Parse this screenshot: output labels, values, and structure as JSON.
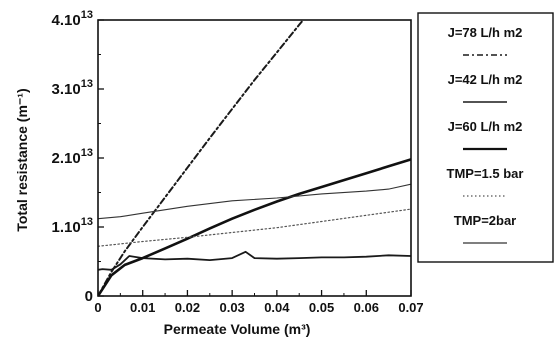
{
  "chart_data": {
    "type": "line",
    "title": "",
    "xlabel": "Permeate Volume (m³)",
    "ylabel": "Total resistance (m⁻¹)",
    "xlim": [
      0,
      0.07
    ],
    "ylim": [
      0,
      40000000000000.0
    ],
    "grid": false,
    "legend_position": "right-outside",
    "x_ticks": [
      {
        "value": 0,
        "label": "0"
      },
      {
        "value": 0.01,
        "label": "0.01"
      },
      {
        "value": 0.02,
        "label": "0.02"
      },
      {
        "value": 0.03,
        "label": "0.03"
      },
      {
        "value": 0.04,
        "label": "0.04"
      },
      {
        "value": 0.05,
        "label": "0.05"
      },
      {
        "value": 0.06,
        "label": "0.06"
      },
      {
        "value": 0.07,
        "label": "0.07"
      }
    ],
    "y_ticks": [
      {
        "value": 0,
        "base": "0",
        "exp": ""
      },
      {
        "value": 10000000000000.0,
        "base": "1.10",
        "exp": "13"
      },
      {
        "value": 20000000000000.0,
        "base": "2.10",
        "exp": "13"
      },
      {
        "value": 30000000000000.0,
        "base": "3.10",
        "exp": "13"
      },
      {
        "value": 40000000000000.0,
        "base": "4.10",
        "exp": "13"
      }
    ],
    "series": [
      {
        "name": "J=78 L/h m2",
        "style": "dashdot",
        "color": "#1a1a1a",
        "x": [
          0,
          0.003,
          0.006,
          0.01,
          0.015,
          0.02,
          0.025,
          0.03,
          0.035,
          0.04,
          0.045,
          0.05
        ],
        "y": [
          0,
          3500000000000.0,
          6500000000000.0,
          10000000000000.0,
          14300000000000.0,
          18600000000000.0,
          22900000000000.0,
          27100000000000.0,
          31300000000000.0,
          35300000000000.0,
          39300000000000.0,
          43200000000000.0
        ]
      },
      {
        "name": "J=42 L/h m2",
        "style": "solid",
        "color": "#1a1a1a",
        "x": [
          0,
          0.001,
          0.003,
          0.005,
          0.007,
          0.01,
          0.015,
          0.02,
          0.025,
          0.03,
          0.033,
          0.035,
          0.04,
          0.045,
          0.05,
          0.055,
          0.06,
          0.065,
          0.07
        ],
        "y": [
          3800000000000.0,
          3900000000000.0,
          3800000000000.0,
          4600000000000.0,
          5800000000000.0,
          5500000000000.0,
          5300000000000.0,
          5400000000000.0,
          5200000000000.0,
          5500000000000.0,
          6400000000000.0,
          5500000000000.0,
          5400000000000.0,
          5500000000000.0,
          5600000000000.0,
          5600000000000.0,
          5700000000000.0,
          5900000000000.0,
          5800000000000.0
        ]
      },
      {
        "name": "J=60 L/h m2",
        "style": "thick",
        "color": "#111111",
        "x": [
          0,
          0.003,
          0.006,
          0.01,
          0.015,
          0.02,
          0.025,
          0.03,
          0.035,
          0.04,
          0.045,
          0.05,
          0.055,
          0.06,
          0.065,
          0.07
        ],
        "y": [
          0,
          3000000000000.0,
          4500000000000.0,
          5500000000000.0,
          6900000000000.0,
          8300000000000.0,
          9800000000000.0,
          11200000000000.0,
          12500000000000.0,
          13700000000000.0,
          14800000000000.0,
          15800000000000.0,
          16800000000000.0,
          17800000000000.0,
          18800000000000.0,
          19800000000000.0
        ]
      },
      {
        "name": "TMP=1.5 bar",
        "style": "dotted",
        "color": "#555555",
        "x": [
          0,
          0.01,
          0.02,
          0.03,
          0.04,
          0.05,
          0.06,
          0.07
        ],
        "y": [
          7200000000000.0,
          7900000000000.0,
          8500000000000.0,
          9200000000000.0,
          9900000000000.0,
          10800000000000.0,
          11700000000000.0,
          12600000000000.0
        ]
      },
      {
        "name": "TMP=2bar",
        "style": "thin",
        "color": "#333333",
        "x": [
          0,
          0.005,
          0.01,
          0.02,
          0.03,
          0.04,
          0.05,
          0.06,
          0.065,
          0.07
        ],
        "y": [
          11200000000000.0,
          11500000000000.0,
          12000000000000.0,
          13000000000000.0,
          13800000000000.0,
          14200000000000.0,
          14800000000000.0,
          15200000000000.0,
          15500000000000.0,
          16200000000000.0
        ]
      }
    ]
  }
}
